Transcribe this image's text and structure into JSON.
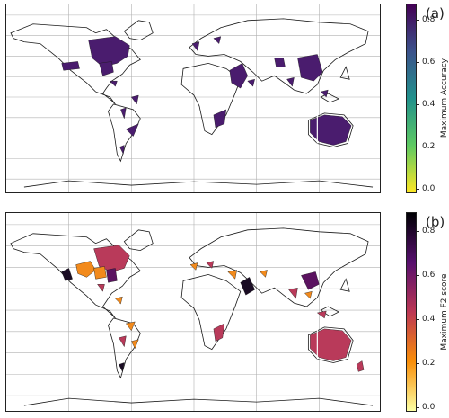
{
  "panels": [
    {
      "id": "a",
      "label": "(a)",
      "colorbar": {
        "title": "Maximum Accuracy",
        "ticks": [
          "0.0",
          "0.2",
          "0.4",
          "0.6",
          "0.8"
        ],
        "colormap": "viridis",
        "range": [
          0.0,
          0.9
        ]
      },
      "region_color": "#4a1c6e"
    },
    {
      "id": "b",
      "label": "(b)",
      "colorbar": {
        "title": "Maximum F2 score",
        "ticks": [
          "0.0",
          "0.2",
          "0.4",
          "0.6",
          "0.8"
        ],
        "colormap": "inferno",
        "range": [
          0.0,
          0.9
        ]
      },
      "region_colors": {
        "high": "#1a0c24",
        "upper": "#5b1360",
        "mid": "#b93a5a",
        "low": "#f28a1c"
      }
    }
  ],
  "colors": {
    "coast": "#1a1a1a",
    "grid": "#b0b0b0",
    "ocean": "#ffffff"
  }
}
